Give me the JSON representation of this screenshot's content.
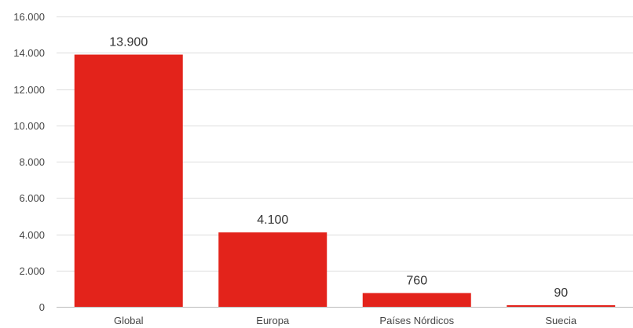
{
  "chart_data": {
    "type": "bar",
    "title": "",
    "xlabel": "",
    "ylabel": "",
    "categories": [
      "Global",
      "Europa",
      "Países Nórdicos",
      "Suecia"
    ],
    "values": [
      13900,
      4100,
      760,
      90
    ],
    "value_labels": [
      "13.900",
      "4.100",
      "760",
      "90"
    ],
    "ylim": [
      0,
      16000
    ],
    "yticks": [
      0,
      2000,
      4000,
      6000,
      8000,
      10000,
      12000,
      14000,
      16000
    ],
    "ytick_labels": [
      "0",
      "2.000",
      "4.000",
      "6.000",
      "8.000",
      "10.000",
      "12.000",
      "14.000",
      "16.000"
    ],
    "grid": true,
    "legend": "none",
    "bar_color": "#e3231b"
  }
}
